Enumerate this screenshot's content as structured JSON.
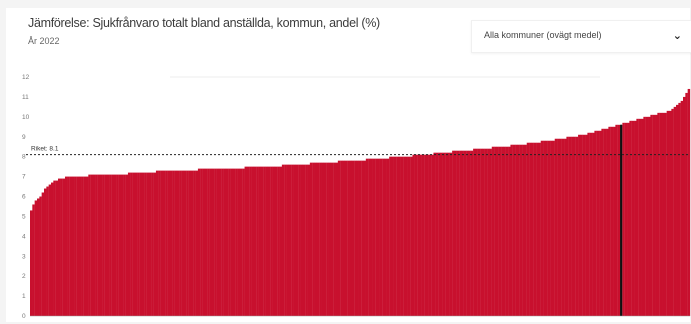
{
  "header": {
    "title": "Jämförelse: Sjukfrånvaro totalt bland anställda, kommun, andel (%)",
    "subtitle": "År 2022"
  },
  "filter": {
    "selected": "Alla kommuner (ovägt medel)",
    "chevron_icon": "chevron-down-icon"
  },
  "colors": {
    "bar": "#c8102e",
    "highlight": "#111111",
    "reference": "#222222"
  },
  "chart_data": {
    "type": "bar",
    "title": "Jämförelse: Sjukfrånvaro totalt bland anställda, kommun, andel (%)",
    "subtitle": "År 2022",
    "xlabel": "",
    "ylabel": "",
    "ylim": [
      0,
      12
    ],
    "yticks": [
      0,
      1,
      2,
      3,
      4,
      5,
      6,
      7,
      8,
      9,
      10,
      11,
      12
    ],
    "grid": false,
    "reference_line": {
      "label": "Riket: 8.1",
      "value": 8.1
    },
    "highlighted_index": 253,
    "sorted": "ascending",
    "values": [
      5.3,
      5.6,
      5.8,
      5.9,
      6.0,
      6.2,
      6.4,
      6.5,
      6.6,
      6.7,
      6.8,
      6.8,
      6.9,
      6.9,
      6.9,
      7.0,
      7.0,
      7.0,
      7.0,
      7.0,
      7.0,
      7.0,
      7.0,
      7.0,
      7.0,
      7.1,
      7.1,
      7.1,
      7.1,
      7.1,
      7.1,
      7.1,
      7.1,
      7.1,
      7.1,
      7.1,
      7.1,
      7.1,
      7.1,
      7.1,
      7.1,
      7.1,
      7.2,
      7.2,
      7.2,
      7.2,
      7.2,
      7.2,
      7.2,
      7.2,
      7.2,
      7.2,
      7.2,
      7.2,
      7.3,
      7.3,
      7.3,
      7.3,
      7.3,
      7.3,
      7.3,
      7.3,
      7.3,
      7.3,
      7.3,
      7.3,
      7.3,
      7.3,
      7.3,
      7.3,
      7.3,
      7.3,
      7.4,
      7.4,
      7.4,
      7.4,
      7.4,
      7.4,
      7.4,
      7.4,
      7.4,
      7.4,
      7.4,
      7.4,
      7.4,
      7.4,
      7.4,
      7.4,
      7.4,
      7.4,
      7.4,
      7.4,
      7.5,
      7.5,
      7.5,
      7.5,
      7.5,
      7.5,
      7.5,
      7.5,
      7.5,
      7.5,
      7.5,
      7.5,
      7.5,
      7.5,
      7.5,
      7.5,
      7.6,
      7.6,
      7.6,
      7.6,
      7.6,
      7.6,
      7.6,
      7.6,
      7.6,
      7.6,
      7.6,
      7.6,
      7.7,
      7.7,
      7.7,
      7.7,
      7.7,
      7.7,
      7.7,
      7.7,
      7.7,
      7.7,
      7.7,
      7.7,
      7.8,
      7.8,
      7.8,
      7.8,
      7.8,
      7.8,
      7.8,
      7.8,
      7.8,
      7.8,
      7.8,
      7.8,
      7.9,
      7.9,
      7.9,
      7.9,
      7.9,
      7.9,
      7.9,
      7.9,
      7.9,
      7.9,
      8.0,
      8.0,
      8.0,
      8.0,
      8.0,
      8.0,
      8.0,
      8.0,
      8.0,
      8.0,
      8.1,
      8.1,
      8.1,
      8.1,
      8.1,
      8.1,
      8.1,
      8.1,
      8.1,
      8.2,
      8.2,
      8.2,
      8.2,
      8.2,
      8.2,
      8.2,
      8.2,
      8.3,
      8.3,
      8.3,
      8.3,
      8.3,
      8.3,
      8.3,
      8.3,
      8.3,
      8.4,
      8.4,
      8.4,
      8.4,
      8.4,
      8.4,
      8.4,
      8.4,
      8.5,
      8.5,
      8.5,
      8.5,
      8.5,
      8.5,
      8.5,
      8.5,
      8.6,
      8.6,
      8.6,
      8.6,
      8.6,
      8.6,
      8.6,
      8.7,
      8.7,
      8.7,
      8.7,
      8.7,
      8.7,
      8.8,
      8.8,
      8.8,
      8.8,
      8.8,
      8.8,
      8.9,
      8.9,
      8.9,
      8.9,
      8.9,
      9.0,
      9.0,
      9.0,
      9.0,
      9.0,
      9.1,
      9.1,
      9.1,
      9.1,
      9.2,
      9.2,
      9.2,
      9.3,
      9.3,
      9.3,
      9.4,
      9.4,
      9.4,
      9.5,
      9.5,
      9.5,
      9.6,
      9.6,
      9.6,
      9.7,
      9.7,
      9.7,
      9.8,
      9.8,
      9.8,
      9.9,
      9.9,
      9.9,
      10.0,
      10.0,
      10.0,
      10.1,
      10.1,
      10.1,
      10.2,
      10.2,
      10.2,
      10.2,
      10.3,
      10.3,
      10.4,
      10.5,
      10.6,
      10.7,
      10.8,
      11.0,
      11.2,
      11.4
    ]
  }
}
